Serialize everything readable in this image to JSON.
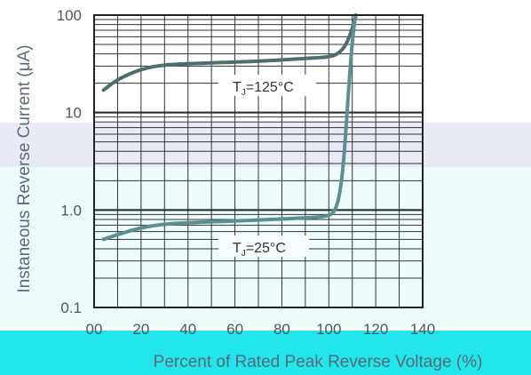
{
  "chart_data": {
    "type": "line",
    "title": "",
    "xlabel": "Percent of Rated Peak Reverse Voltage (%)",
    "ylabel": "Instaneous Reverse Current (μA)",
    "x_scale": "linear",
    "y_scale": "log",
    "xlim": [
      0,
      140
    ],
    "ylim": [
      0.1,
      100
    ],
    "x_ticks": [
      "00",
      "20",
      "40",
      "60",
      "80",
      "100",
      "120",
      "140"
    ],
    "y_ticks": [
      "100",
      "10",
      "1.0",
      "0.1"
    ],
    "grid": true,
    "series": [
      {
        "name": "TJ=125°C",
        "label_main": "T",
        "label_sub": "J",
        "label_rest": "=125°C",
        "x": [
          4,
          10,
          20,
          30,
          45,
          60,
          75,
          90,
          100,
          104,
          107,
          109,
          110.5,
          111.5
        ],
        "y": [
          17,
          22,
          28,
          31,
          32,
          33,
          34,
          36,
          37,
          40,
          48,
          62,
          80,
          100
        ]
      },
      {
        "name": "TJ=25°C",
        "label_main": "T",
        "label_sub": "J",
        "label_rest": "=25°C",
        "x": [
          4,
          10,
          20,
          30,
          45,
          60,
          75,
          90,
          100,
          103,
          105,
          106.5,
          107.5,
          108.5,
          109.5,
          110.5,
          111.5
        ],
        "y": [
          0.5,
          0.56,
          0.66,
          0.72,
          0.75,
          0.77,
          0.8,
          0.83,
          0.86,
          1.0,
          1.6,
          3.5,
          8,
          18,
          38,
          70,
          100
        ]
      }
    ]
  }
}
